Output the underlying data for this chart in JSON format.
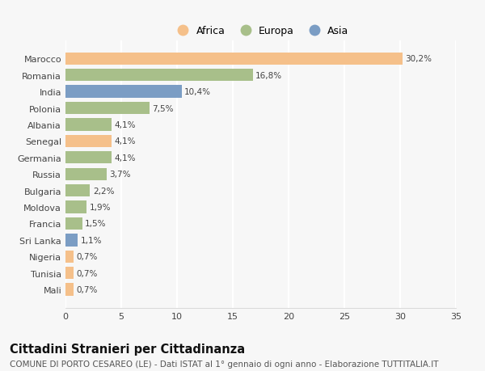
{
  "countries": [
    "Marocco",
    "Romania",
    "India",
    "Polonia",
    "Albania",
    "Senegal",
    "Germania",
    "Russia",
    "Bulgaria",
    "Moldova",
    "Francia",
    "Sri Lanka",
    "Nigeria",
    "Tunisia",
    "Mali"
  ],
  "values": [
    30.2,
    16.8,
    10.4,
    7.5,
    4.1,
    4.1,
    4.1,
    3.7,
    2.2,
    1.9,
    1.5,
    1.1,
    0.7,
    0.7,
    0.7
  ],
  "labels": [
    "30,2%",
    "16,8%",
    "10,4%",
    "7,5%",
    "4,1%",
    "4,1%",
    "4,1%",
    "3,7%",
    "2,2%",
    "1,9%",
    "1,5%",
    "1,1%",
    "0,7%",
    "0,7%",
    "0,7%"
  ],
  "colors": [
    "#F5C08A",
    "#A8BF8A",
    "#7B9DC4",
    "#A8BF8A",
    "#A8BF8A",
    "#F5C08A",
    "#A8BF8A",
    "#A8BF8A",
    "#A8BF8A",
    "#A8BF8A",
    "#A8BF8A",
    "#7B9DC4",
    "#F5C08A",
    "#F5C08A",
    "#F5C08A"
  ],
  "continent_colors": {
    "Africa": "#F5C08A",
    "Europa": "#A8BF8A",
    "Asia": "#7B9DC4"
  },
  "xlim": [
    0,
    35
  ],
  "xticks": [
    0,
    5,
    10,
    15,
    20,
    25,
    30,
    35
  ],
  "title": "Cittadini Stranieri per Cittadinanza",
  "subtitle": "COMUNE DI PORTO CESAREO (LE) - Dati ISTAT al 1° gennaio di ogni anno - Elaborazione TUTTITALIA.IT",
  "background_color": "#f7f7f7",
  "plot_background": "#f7f7f7",
  "bar_height": 0.75,
  "title_fontsize": 10.5,
  "subtitle_fontsize": 7.5,
  "label_fontsize": 7.5,
  "tick_fontsize": 8,
  "legend_fontsize": 9
}
